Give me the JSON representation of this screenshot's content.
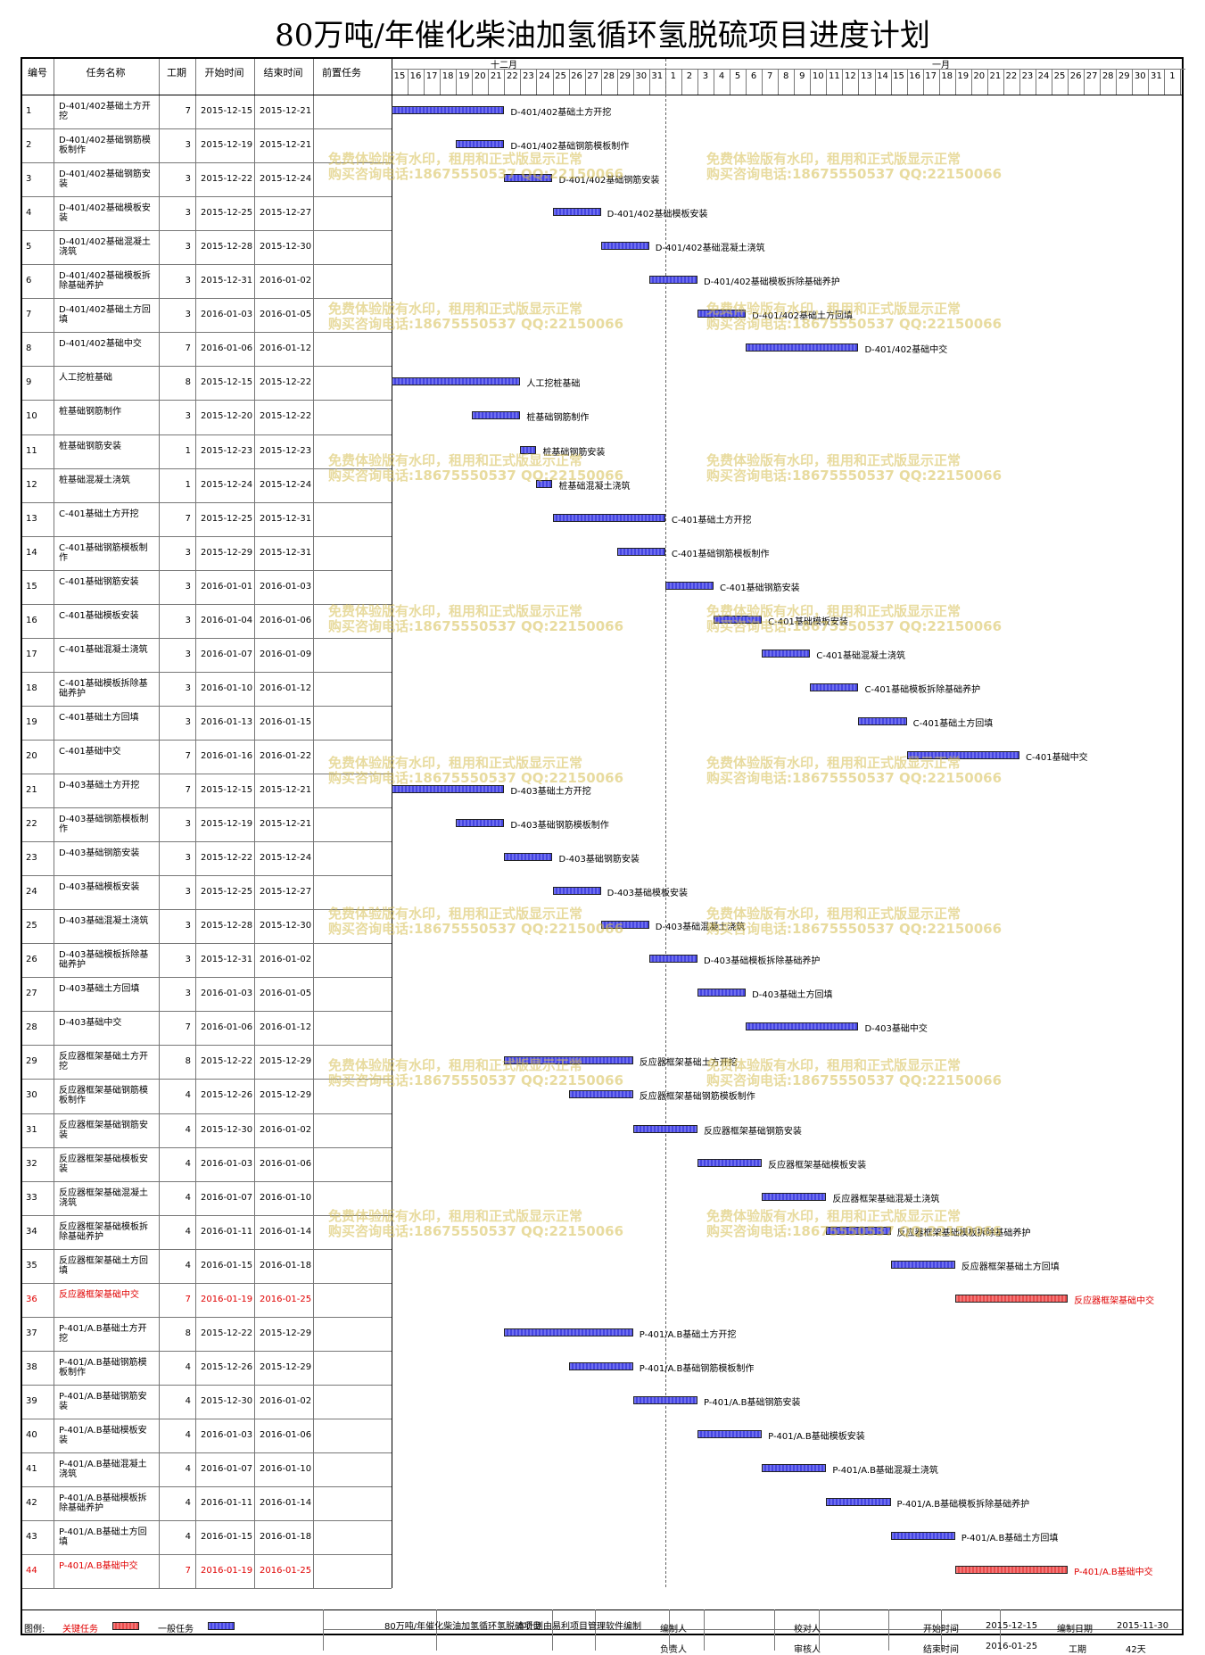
{
  "title": "80万吨/年催化柴油加氢循环氢脱硫项目进度计划",
  "columns": [
    "编号",
    "任务名称",
    "工期",
    "开始时间",
    "结束时间",
    "前置任务"
  ],
  "months": [
    "十二月",
    "一月"
  ],
  "days": [
    "15",
    "16",
    "17",
    "18",
    "19",
    "20",
    "21",
    "22",
    "23",
    "24",
    "25",
    "26",
    "27",
    "28",
    "29",
    "30",
    "31",
    "1",
    "2",
    "3",
    "4",
    "5",
    "6",
    "7",
    "8",
    "9",
    "10",
    "11",
    "12",
    "13",
    "14",
    "15",
    "16",
    "17",
    "18",
    "19",
    "20",
    "21",
    "22",
    "23",
    "24",
    "25",
    "26",
    "27",
    "28",
    "29",
    "30",
    "31",
    "1"
  ],
  "tasks": [
    {
      "id": "1",
      "name": "D-401/402基础土方开挖",
      "dur": "7",
      "start": "2015-12-15",
      "end": "2015-12-21",
      "bar": "D-401/402基础土方开挖",
      "s": 0,
      "d": 7,
      "critical": false
    },
    {
      "id": "2",
      "name": "D-401/402基础钢筋模板制作",
      "dur": "3",
      "start": "2015-12-19",
      "end": "2015-12-21",
      "bar": "D-401/402基础钢筋模板制作",
      "s": 4,
      "d": 3,
      "critical": false
    },
    {
      "id": "3",
      "name": "D-401/402基础钢筋安装",
      "dur": "3",
      "start": "2015-12-22",
      "end": "2015-12-24",
      "bar": "D-401/402基础钢筋安装",
      "s": 7,
      "d": 3,
      "critical": false
    },
    {
      "id": "4",
      "name": "D-401/402基础模板安装",
      "dur": "3",
      "start": "2015-12-25",
      "end": "2015-12-27",
      "bar": "D-401/402基础模板安装",
      "s": 10,
      "d": 3,
      "critical": false
    },
    {
      "id": "5",
      "name": "D-401/402基础混凝土浇筑",
      "dur": "3",
      "start": "2015-12-28",
      "end": "2015-12-30",
      "bar": "D-401/402基础混凝土浇筑",
      "s": 13,
      "d": 3,
      "critical": false
    },
    {
      "id": "6",
      "name": "D-401/402基础模板拆除基础养护",
      "dur": "3",
      "start": "2015-12-31",
      "end": "2016-01-02",
      "bar": "D-401/402基础模板拆除基础养护",
      "s": 16,
      "d": 3,
      "critical": false
    },
    {
      "id": "7",
      "name": "D-401/402基础土方回填",
      "dur": "3",
      "start": "2016-01-03",
      "end": "2016-01-05",
      "bar": "D-401/402基础土方回填",
      "s": 19,
      "d": 3,
      "critical": false
    },
    {
      "id": "8",
      "name": "D-401/402基础中交",
      "dur": "7",
      "start": "2016-01-06",
      "end": "2016-01-12",
      "bar": "D-401/402基础中交",
      "s": 22,
      "d": 7,
      "critical": false
    },
    {
      "id": "9",
      "name": "人工挖桩基础",
      "dur": "8",
      "start": "2015-12-15",
      "end": "2015-12-22",
      "bar": "人工挖桩基础",
      "s": 0,
      "d": 8,
      "critical": false
    },
    {
      "id": "10",
      "name": "桩基础钢筋制作",
      "dur": "3",
      "start": "2015-12-20",
      "end": "2015-12-22",
      "bar": "桩基础钢筋制作",
      "s": 5,
      "d": 3,
      "critical": false
    },
    {
      "id": "11",
      "name": "桩基础钢筋安装",
      "dur": "1",
      "start": "2015-12-23",
      "end": "2015-12-23",
      "bar": "桩基础钢筋安装",
      "s": 8,
      "d": 1,
      "critical": false
    },
    {
      "id": "12",
      "name": "桩基础混凝土浇筑",
      "dur": "1",
      "start": "2015-12-24",
      "end": "2015-12-24",
      "bar": "桩基础混凝土浇筑",
      "s": 9,
      "d": 1,
      "critical": false
    },
    {
      "id": "13",
      "name": "C-401基础土方开挖",
      "dur": "7",
      "start": "2015-12-25",
      "end": "2015-12-31",
      "bar": "C-401基础土方开挖",
      "s": 10,
      "d": 7,
      "critical": false
    },
    {
      "id": "14",
      "name": "C-401基础钢筋模板制作",
      "dur": "3",
      "start": "2015-12-29",
      "end": "2015-12-31",
      "bar": "C-401基础钢筋模板制作",
      "s": 14,
      "d": 3,
      "critical": false
    },
    {
      "id": "15",
      "name": "C-401基础钢筋安装",
      "dur": "3",
      "start": "2016-01-01",
      "end": "2016-01-03",
      "bar": "C-401基础钢筋安装",
      "s": 17,
      "d": 3,
      "critical": false
    },
    {
      "id": "16",
      "name": "C-401基础模板安装",
      "dur": "3",
      "start": "2016-01-04",
      "end": "2016-01-06",
      "bar": "C-401基础模板安装",
      "s": 20,
      "d": 3,
      "critical": false
    },
    {
      "id": "17",
      "name": "C-401基础混凝土浇筑",
      "dur": "3",
      "start": "2016-01-07",
      "end": "2016-01-09",
      "bar": "C-401基础混凝土浇筑",
      "s": 23,
      "d": 3,
      "critical": false
    },
    {
      "id": "18",
      "name": "C-401基础模板拆除基础养护",
      "dur": "3",
      "start": "2016-01-10",
      "end": "2016-01-12",
      "bar": "C-401基础模板拆除基础养护",
      "s": 26,
      "d": 3,
      "critical": false
    },
    {
      "id": "19",
      "name": "C-401基础土方回填",
      "dur": "3",
      "start": "2016-01-13",
      "end": "2016-01-15",
      "bar": "C-401基础土方回填",
      "s": 29,
      "d": 3,
      "critical": false
    },
    {
      "id": "20",
      "name": "C-401基础中交",
      "dur": "7",
      "start": "2016-01-16",
      "end": "2016-01-22",
      "bar": "C-401基础中交",
      "s": 32,
      "d": 7,
      "critical": false
    },
    {
      "id": "21",
      "name": "D-403基础土方开挖",
      "dur": "7",
      "start": "2015-12-15",
      "end": "2015-12-21",
      "bar": "D-403基础土方开挖",
      "s": 0,
      "d": 7,
      "critical": false
    },
    {
      "id": "22",
      "name": "D-403基础钢筋模板制作",
      "dur": "3",
      "start": "2015-12-19",
      "end": "2015-12-21",
      "bar": "D-403基础钢筋模板制作",
      "s": 4,
      "d": 3,
      "critical": false
    },
    {
      "id": "23",
      "name": "D-403基础钢筋安装",
      "dur": "3",
      "start": "2015-12-22",
      "end": "2015-12-24",
      "bar": "D-403基础钢筋安装",
      "s": 7,
      "d": 3,
      "critical": false
    },
    {
      "id": "24",
      "name": "D-403基础模板安装",
      "dur": "3",
      "start": "2015-12-25",
      "end": "2015-12-27",
      "bar": "D-403基础模板安装",
      "s": 10,
      "d": 3,
      "critical": false
    },
    {
      "id": "25",
      "name": "D-403基础混凝土浇筑",
      "dur": "3",
      "start": "2015-12-28",
      "end": "2015-12-30",
      "bar": "D-403基础混凝土浇筑",
      "s": 13,
      "d": 3,
      "critical": false
    },
    {
      "id": "26",
      "name": "D-403基础模板拆除基础养护",
      "dur": "3",
      "start": "2015-12-31",
      "end": "2016-01-02",
      "bar": "D-403基础模板拆除基础养护",
      "s": 16,
      "d": 3,
      "critical": false
    },
    {
      "id": "27",
      "name": "D-403基础土方回填",
      "dur": "3",
      "start": "2016-01-03",
      "end": "2016-01-05",
      "bar": "D-403基础土方回填",
      "s": 19,
      "d": 3,
      "critical": false
    },
    {
      "id": "28",
      "name": "D-403基础中交",
      "dur": "7",
      "start": "2016-01-06",
      "end": "2016-01-12",
      "bar": "D-403基础中交",
      "s": 22,
      "d": 7,
      "critical": false
    },
    {
      "id": "29",
      "name": "反应器框架基础土方开挖",
      "dur": "8",
      "start": "2015-12-22",
      "end": "2015-12-29",
      "bar": "反应器框架基础土方开挖",
      "s": 7,
      "d": 8,
      "critical": false
    },
    {
      "id": "30",
      "name": "反应器框架基础钢筋模板制作",
      "dur": "4",
      "start": "2015-12-26",
      "end": "2015-12-29",
      "bar": "反应器框架基础钢筋模板制作",
      "s": 11,
      "d": 4,
      "critical": false
    },
    {
      "id": "31",
      "name": "反应器框架基础钢筋安装",
      "dur": "4",
      "start": "2015-12-30",
      "end": "2016-01-02",
      "bar": "反应器框架基础钢筋安装",
      "s": 15,
      "d": 4,
      "critical": false
    },
    {
      "id": "32",
      "name": "反应器框架基础模板安装",
      "dur": "4",
      "start": "2016-01-03",
      "end": "2016-01-06",
      "bar": "反应器框架基础模板安装",
      "s": 19,
      "d": 4,
      "critical": false
    },
    {
      "id": "33",
      "name": "反应器框架基础混凝土浇筑",
      "dur": "4",
      "start": "2016-01-07",
      "end": "2016-01-10",
      "bar": "反应器框架基础混凝土浇筑",
      "s": 23,
      "d": 4,
      "critical": false
    },
    {
      "id": "34",
      "name": "反应器框架基础模板拆除基础养护",
      "dur": "4",
      "start": "2016-01-11",
      "end": "2016-01-14",
      "bar": "反应器框架基础模板拆除基础养护",
      "s": 27,
      "d": 4,
      "critical": false
    },
    {
      "id": "35",
      "name": "反应器框架基础土方回填",
      "dur": "4",
      "start": "2016-01-15",
      "end": "2016-01-18",
      "bar": "反应器框架基础土方回填",
      "s": 31,
      "d": 4,
      "critical": false
    },
    {
      "id": "36",
      "name": "反应器框架基础中交",
      "dur": "7",
      "start": "2016-01-19",
      "end": "2016-01-25",
      "bar": "反应器框架基础中交",
      "s": 35,
      "d": 7,
      "critical": true
    },
    {
      "id": "37",
      "name": "P-401/A.B基础土方开挖",
      "dur": "8",
      "start": "2015-12-22",
      "end": "2015-12-29",
      "bar": "P-401/A.B基础土方开挖",
      "s": 7,
      "d": 8,
      "critical": false
    },
    {
      "id": "38",
      "name": "P-401/A.B基础钢筋模板制作",
      "dur": "4",
      "start": "2015-12-26",
      "end": "2015-12-29",
      "bar": "P-401/A.B基础钢筋模板制作",
      "s": 11,
      "d": 4,
      "critical": false
    },
    {
      "id": "39",
      "name": "P-401/A.B基础钢筋安装",
      "dur": "4",
      "start": "2015-12-30",
      "end": "2016-01-02",
      "bar": "P-401/A.B基础钢筋安装",
      "s": 15,
      "d": 4,
      "critical": false
    },
    {
      "id": "40",
      "name": "P-401/A.B基础模板安装",
      "dur": "4",
      "start": "2016-01-03",
      "end": "2016-01-06",
      "bar": "P-401/A.B基础模板安装",
      "s": 19,
      "d": 4,
      "critical": false
    },
    {
      "id": "41",
      "name": "P-401/A.B基础混凝土浇筑",
      "dur": "4",
      "start": "2016-01-07",
      "end": "2016-01-10",
      "bar": "P-401/A.B基础混凝土浇筑",
      "s": 23,
      "d": 4,
      "critical": false
    },
    {
      "id": "42",
      "name": "P-401/A.B基础模板拆除基础养护",
      "dur": "4",
      "start": "2016-01-11",
      "end": "2016-01-14",
      "bar": "P-401/A.B基础模板拆除基础养护",
      "s": 27,
      "d": 4,
      "critical": false
    },
    {
      "id": "43",
      "name": "P-401/A.B基础土方回填",
      "dur": "4",
      "start": "2016-01-15",
      "end": "2016-01-18",
      "bar": "P-401/A.B基础土方回填",
      "s": 31,
      "d": 4,
      "critical": false
    },
    {
      "id": "44",
      "name": "P-401/A.B基础中交",
      "dur": "7",
      "start": "2016-01-19",
      "end": "2016-01-25",
      "bar": "P-401/A.B基础中交",
      "s": 35,
      "d": 7,
      "critical": true
    }
  ],
  "watermark": {
    "line1": "免费体验版有水印，租用和正式版显示正常",
    "line2": "购买咨询电话:18675550537 QQ:22150066"
  },
  "footer": {
    "legend_label": "图例:",
    "critical_label": "关键任务",
    "normal_label": "一般任务",
    "project": "80万吨/年催化柴油加氢循环氢脱硫项目",
    "note": "本计划由易利项目管理软件编制",
    "editor": "编制人",
    "checker": "校对人",
    "owner": "负责人",
    "reviewer": "审核人",
    "start_label": "开始时间",
    "start_value": "2015-12-15",
    "end_label": "结束时间",
    "end_value": "2016-01-25",
    "date_label": "编制日期",
    "date_value": "2015-11-30",
    "dur_label": "工期",
    "dur_value": "42天"
  },
  "colors": {
    "normal_bar": "#5050e6",
    "critical_bar": "#f06060",
    "critical_text": "#e00000"
  }
}
